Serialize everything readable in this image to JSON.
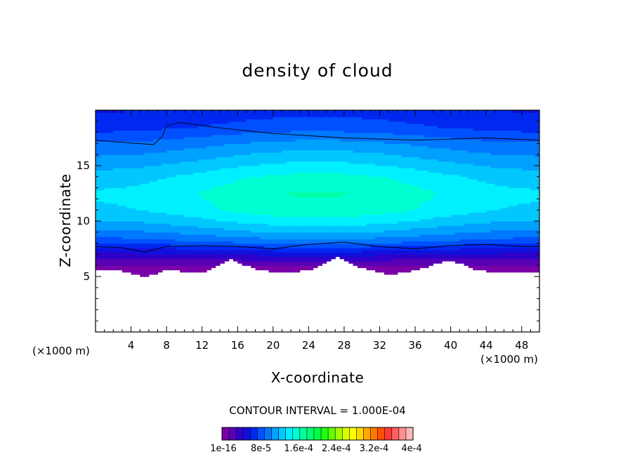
{
  "chart_data": {
    "type": "heatmap",
    "title": "density of cloud",
    "xlabel": "X-coordinate",
    "ylabel": "Z-coordinate",
    "x_unit": "(×1000 m)",
    "z_unit": "(×1000 m)",
    "xlim": [
      0,
      50
    ],
    "ylim": [
      0,
      20
    ],
    "x_ticks": [
      4,
      8,
      12,
      16,
      20,
      24,
      28,
      32,
      36,
      40,
      44,
      48
    ],
    "y_ticks": [
      5,
      10,
      15
    ],
    "contour_interval": "CONTOUR INTERVAL = 1.000E-04",
    "colorbar": {
      "labels": [
        "1e-16",
        "8e-5",
        "1.6e-4",
        "2.4e-4",
        "3.2e-4",
        "4e-4"
      ],
      "colors": [
        "#7a00a8",
        "#5a00b4",
        "#3000c8",
        "#1010dc",
        "#0028f0",
        "#0050ff",
        "#0078ff",
        "#00a0ff",
        "#00c8ff",
        "#00f0ff",
        "#00ffd0",
        "#00ffa0",
        "#00ff70",
        "#00ff40",
        "#20ff10",
        "#60ff00",
        "#a0ff00",
        "#d8ff00",
        "#ffff00",
        "#ffd800",
        "#ffa800",
        "#ff7800",
        "#ff5000",
        "#ff3838",
        "#ff6060",
        "#ff9090",
        "#ffb8b8"
      ]
    },
    "profile": [
      {
        "z": 19.8,
        "value": 6.5e-05
      },
      {
        "z": 18.5,
        "value": 7.5e-05
      },
      {
        "z": 17.0,
        "value": 0.0001
      },
      {
        "z": 15.5,
        "value": 0.00012
      },
      {
        "z": 14.0,
        "value": 0.00014
      },
      {
        "z": 12.5,
        "value": 0.00015
      },
      {
        "z": 11.0,
        "value": 0.000145
      },
      {
        "z": 10.0,
        "value": 0.00013
      },
      {
        "z": 9.0,
        "value": 0.00011
      },
      {
        "z": 8.2,
        "value": 9e-05
      },
      {
        "z": 7.6,
        "value": 6.5e-05
      },
      {
        "z": 7.0,
        "value": 4.5e-05
      },
      {
        "z": 6.4,
        "value": 2.5e-05
      },
      {
        "z": 5.8,
        "value": 8e-06
      }
    ],
    "cloud_base_trace": [
      {
        "x": 0,
        "z": 5.6
      },
      {
        "x": 3,
        "z": 5.5
      },
      {
        "x": 5.5,
        "z": 5.0
      },
      {
        "x": 8,
        "z": 5.6
      },
      {
        "x": 12,
        "z": 5.3
      },
      {
        "x": 15,
        "z": 6.6
      },
      {
        "x": 18,
        "z": 5.7
      },
      {
        "x": 21,
        "z": 5.3
      },
      {
        "x": 24,
        "z": 5.6
      },
      {
        "x": 27,
        "z": 6.8
      },
      {
        "x": 30,
        "z": 5.8
      },
      {
        "x": 33,
        "z": 5.2
      },
      {
        "x": 36,
        "z": 5.6
      },
      {
        "x": 40,
        "z": 6.5
      },
      {
        "x": 43,
        "z": 5.6
      },
      {
        "x": 46,
        "z": 5.3
      },
      {
        "x": 50,
        "z": 5.4
      }
    ],
    "contours": [
      {
        "name": "upper contour",
        "points": [
          {
            "x": 0,
            "z": 17.3
          },
          {
            "x": 3,
            "z": 17.1
          },
          {
            "x": 6.5,
            "z": 16.9
          },
          {
            "x": 7.5,
            "z": 17.6
          },
          {
            "x": 8,
            "z": 18.6
          },
          {
            "x": 9.5,
            "z": 18.9
          },
          {
            "x": 14,
            "z": 18.4
          },
          {
            "x": 20,
            "z": 17.9
          },
          {
            "x": 28,
            "z": 17.5
          },
          {
            "x": 36,
            "z": 17.3
          },
          {
            "x": 44,
            "z": 17.5
          },
          {
            "x": 50,
            "z": 17.3
          }
        ]
      },
      {
        "name": "lower contour",
        "points": [
          {
            "x": 0,
            "z": 7.7
          },
          {
            "x": 3,
            "z": 7.6
          },
          {
            "x": 5.5,
            "z": 7.2
          },
          {
            "x": 8,
            "z": 7.7
          },
          {
            "x": 12,
            "z": 7.8
          },
          {
            "x": 16,
            "z": 7.7
          },
          {
            "x": 20,
            "z": 7.5
          },
          {
            "x": 24,
            "z": 7.9
          },
          {
            "x": 28,
            "z": 8.1
          },
          {
            "x": 32,
            "z": 7.7
          },
          {
            "x": 36,
            "z": 7.5
          },
          {
            "x": 40,
            "z": 7.8
          },
          {
            "x": 44,
            "z": 7.9
          },
          {
            "x": 48,
            "z": 7.7
          },
          {
            "x": 50,
            "z": 7.7
          }
        ]
      }
    ]
  }
}
